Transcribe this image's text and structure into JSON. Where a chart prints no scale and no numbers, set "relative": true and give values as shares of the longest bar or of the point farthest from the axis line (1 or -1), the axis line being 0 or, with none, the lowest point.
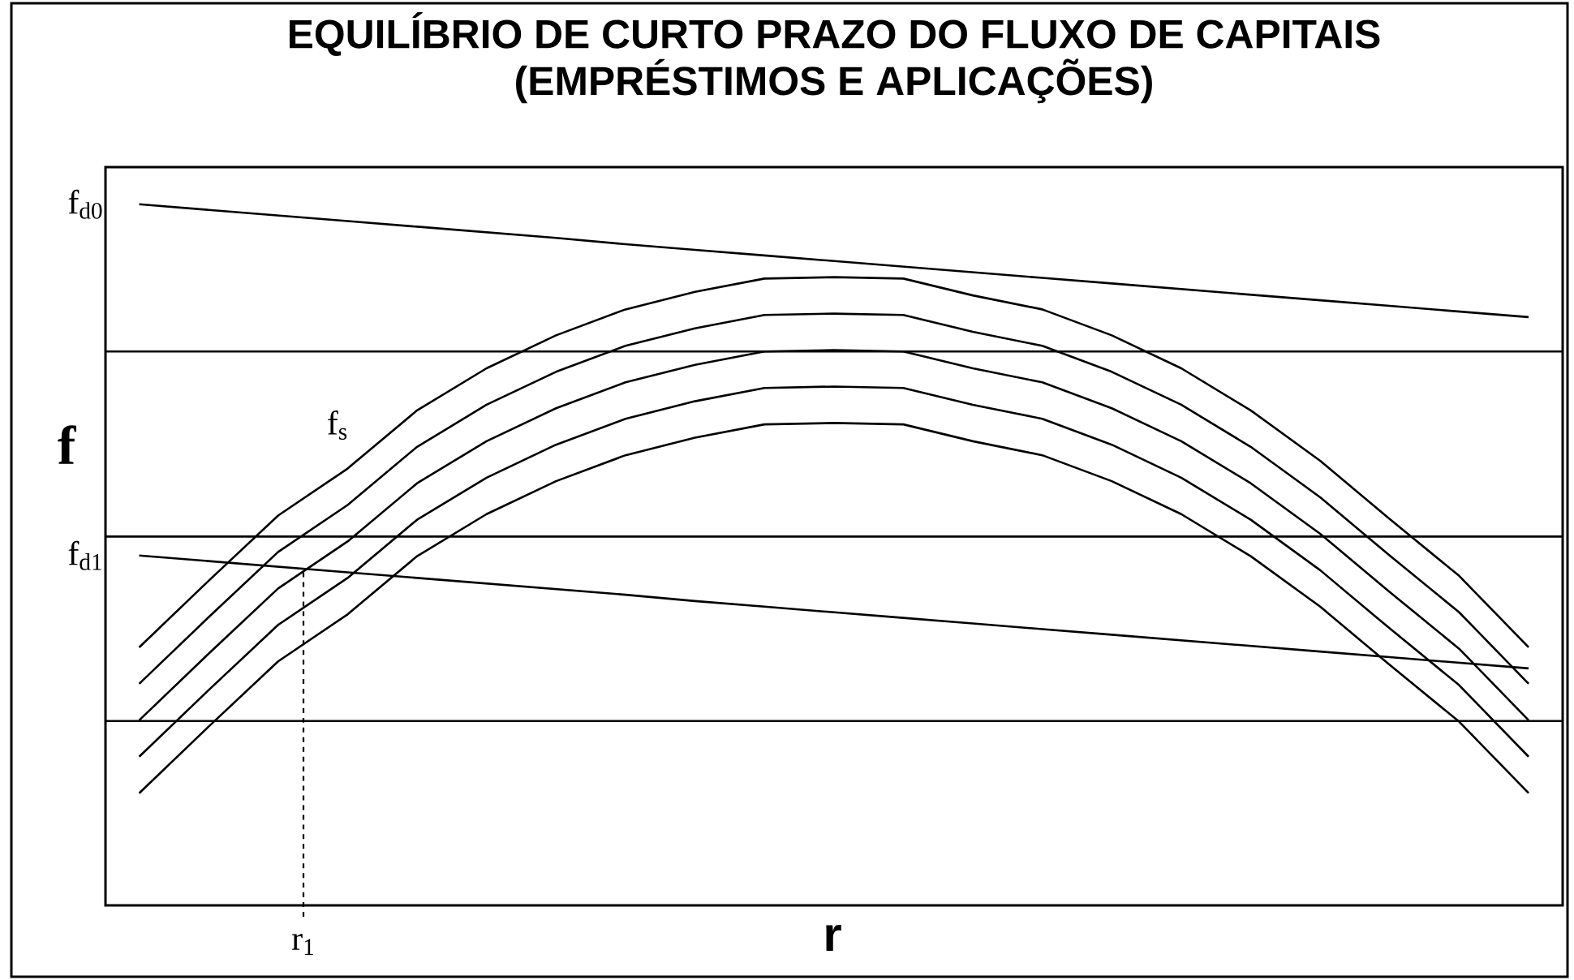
{
  "chart_data": {
    "type": "line",
    "title": "EQUILÍBRIO DE CURTO PRAZO DO FLUXO DE CAPITAIS (EMPRÉSTIMOS E APLICAÇÕES)",
    "xlabel": "r",
    "ylabel": "f",
    "relative": true,
    "categories": [
      null,
      null,
      null,
      null,
      null,
      null,
      null,
      null,
      null,
      null,
      null,
      null,
      null,
      null,
      null,
      null,
      null,
      null,
      null,
      null,
      null
    ],
    "series": [
      {
        "name": "f$_{d0}$",
        "color": "#000000",
        "values": [
          1.0,
          0.992,
          0.984,
          0.976,
          0.968,
          0.96,
          0.952,
          0.943,
          0.935,
          0.927,
          0.919,
          0.911,
          0.903,
          0.895,
          0.887,
          0.879,
          0.871,
          0.863,
          0.855,
          0.847,
          0.839
        ]
      },
      {
        "name": "f$_{d1}$",
        "color": "#000000",
        "values": [
          0.499,
          0.491,
          0.483,
          0.475,
          0.467,
          0.459,
          0.451,
          0.443,
          0.434,
          0.426,
          0.418,
          0.41,
          0.402,
          0.394,
          0.386,
          0.378,
          0.37,
          0.362,
          0.354,
          0.346,
          0.338
        ]
      },
      {
        "color": "#000000",
        "values": [
          0.368,
          0.463,
          0.556,
          0.623,
          0.706,
          0.766,
          0.813,
          0.85,
          0.875,
          0.894,
          0.896,
          0.894,
          0.87,
          0.85,
          0.813,
          0.766,
          0.706,
          0.634,
          0.551,
          0.47,
          0.368
        ]
      },
      {
        "color": "#000000",
        "values": [
          0.316,
          0.411,
          0.504,
          0.571,
          0.654,
          0.714,
          0.761,
          0.798,
          0.823,
          0.842,
          0.844,
          0.842,
          0.818,
          0.798,
          0.761,
          0.714,
          0.654,
          0.582,
          0.499,
          0.418,
          0.316
        ]
      },
      {
        "color": "#000000",
        "values": [
          0.264,
          0.359,
          0.452,
          0.519,
          0.602,
          0.662,
          0.709,
          0.746,
          0.771,
          0.79,
          0.792,
          0.79,
          0.766,
          0.746,
          0.709,
          0.662,
          0.602,
          0.53,
          0.447,
          0.366,
          0.264
        ]
      },
      {
        "color": "#000000",
        "values": [
          0.212,
          0.307,
          0.4,
          0.467,
          0.55,
          0.61,
          0.657,
          0.694,
          0.719,
          0.738,
          0.74,
          0.738,
          0.714,
          0.694,
          0.657,
          0.61,
          0.55,
          0.478,
          0.395,
          0.314,
          0.212
        ]
      },
      {
        "color": "#000000",
        "values": [
          0.16,
          0.255,
          0.348,
          0.415,
          0.498,
          0.558,
          0.605,
          0.642,
          0.667,
          0.686,
          0.688,
          0.686,
          0.662,
          0.642,
          0.605,
          0.558,
          0.498,
          0.426,
          0.343,
          0.262,
          0.16
        ]
      }
    ],
    "ref_lines": [
      {
        "axis": "y",
        "value": 0.79
      },
      {
        "axis": "y",
        "value": 0.526
      },
      {
        "axis": "y",
        "value": 0.263
      }
    ],
    "annotations": [
      "f$_{s}$",
      "r$_{1}$"
    ]
  }
}
